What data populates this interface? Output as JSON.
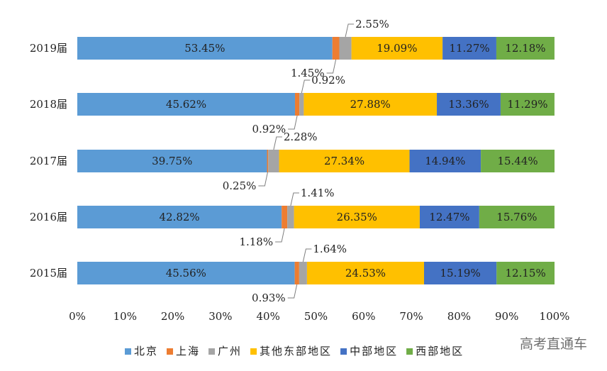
{
  "chart_data": {
    "type": "bar",
    "orientation": "horizontal",
    "stacked": true,
    "categories": [
      "2019届",
      "2018届",
      "2017届",
      "2016届",
      "2015届"
    ],
    "series": [
      {
        "name": "北京",
        "color": "#5b9bd5",
        "values": [
          53.45,
          45.62,
          39.75,
          42.82,
          45.56
        ],
        "labels": [
          "53.45%",
          "45.62%",
          "39.75%",
          "42.82%",
          "45.56%"
        ]
      },
      {
        "name": "上海",
        "color": "#ed7d31",
        "values": [
          1.45,
          0.92,
          0.25,
          1.18,
          0.93
        ],
        "labels": [
          "1.45%",
          "0.92%",
          "0.25%",
          "1.18%",
          "0.93%"
        ]
      },
      {
        "name": "广州",
        "color": "#a5a5a5",
        "values": [
          2.55,
          0.92,
          2.28,
          1.41,
          1.64
        ],
        "labels": [
          "2.55%",
          "0.92%",
          "2.28%",
          "1.41%",
          "1.64%"
        ]
      },
      {
        "name": "其他东部地区",
        "color": "#ffc000",
        "values": [
          19.09,
          27.88,
          27.34,
          26.35,
          24.53
        ],
        "labels": [
          "19.09%",
          "27.88%",
          "27.34%",
          "26.35%",
          "24.53%"
        ]
      },
      {
        "name": "中部地区",
        "color": "#4472c4",
        "values": [
          11.27,
          13.36,
          14.94,
          12.47,
          15.19
        ],
        "labels": [
          "11.27%",
          "13.36%",
          "14.94%",
          "12.47%",
          "15.19%"
        ]
      },
      {
        "name": "西部地区",
        "color": "#70ad47",
        "values": [
          12.18,
          11.29,
          15.44,
          15.76,
          12.15
        ],
        "labels": [
          "12.18%",
          "11.29%",
          "15.44%",
          "15.76%",
          "12.15%"
        ]
      }
    ],
    "xlim": [
      0,
      100
    ],
    "x_ticks": [
      "0%",
      "10%",
      "20%",
      "30%",
      "40%",
      "50%",
      "60%",
      "70%",
      "80%",
      "90%",
      "100%"
    ],
    "legend": "bottom",
    "grid": false
  },
  "watermark": "高考直通车"
}
